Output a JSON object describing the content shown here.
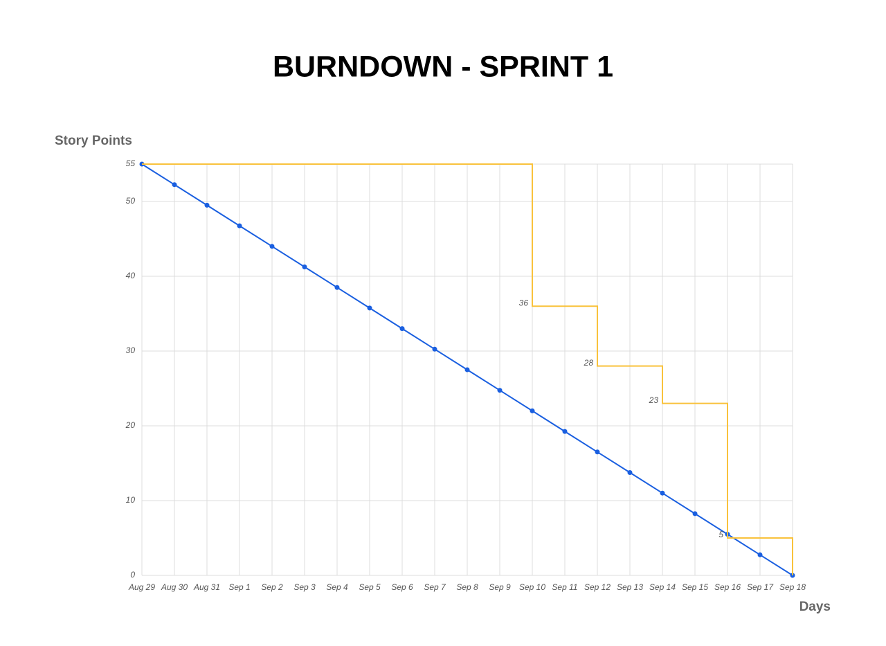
{
  "chart_data": {
    "type": "line",
    "title": "BURNDOWN - SPRINT 1",
    "y_label": "Story Points",
    "x_label": "Days",
    "categories": [
      "Aug 29",
      "Aug 30",
      "Aug 31",
      "Sep 1",
      "Sep 2",
      "Sep 3",
      "Sep 4",
      "Sep 5",
      "Sep 6",
      "Sep 7",
      "Sep 8",
      "Sep 9",
      "Sep 10",
      "Sep 11",
      "Sep 12",
      "Sep 13",
      "Sep 14",
      "Sep 15",
      "Sep 16",
      "Sep 17",
      "Sep 18"
    ],
    "series": [
      {
        "color": "#1a5fe0",
        "markers": true,
        "values": [
          55,
          52.25,
          49.5,
          46.75,
          44,
          41.25,
          38.5,
          35.75,
          33,
          30.25,
          27.5,
          24.75,
          22,
          19.25,
          16.5,
          13.75,
          11,
          8.25,
          5.5,
          2.75,
          0
        ]
      },
      {
        "color": "#f9c23c",
        "step": true,
        "show_labels": true,
        "values": [
          55,
          55,
          55,
          55,
          55,
          55,
          55,
          55,
          55,
          55,
          55,
          55,
          36,
          36,
          28,
          28,
          23,
          23,
          5,
          5,
          0
        ]
      }
    ],
    "ylim": [
      0,
      55
    ],
    "yticks": [
      0,
      10,
      20,
      30,
      40,
      50,
      55
    ],
    "grid": true
  }
}
